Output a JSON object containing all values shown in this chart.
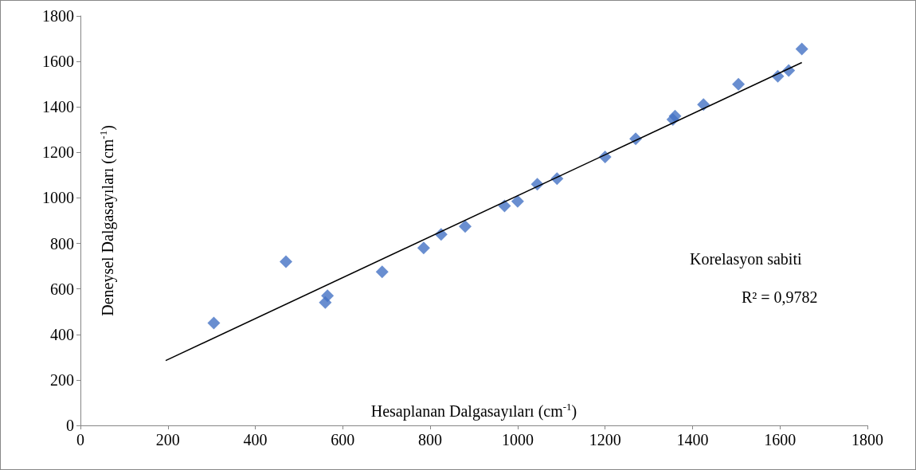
{
  "chart_data": {
    "type": "scatter",
    "xlabel": "Hesaplanan Dalgasayıları (cm$^{-1}$)",
    "ylabel": "Deneysel Dalgasayıları (cm$^{-1}$)",
    "xlim": [
      0,
      1800
    ],
    "xticks": [
      0,
      200,
      400,
      600,
      800,
      1000,
      1200,
      1400,
      1600,
      1800
    ],
    "ylim": [
      0,
      1800
    ],
    "yticks": [
      0,
      200,
      400,
      600,
      800,
      1000,
      1200,
      1400,
      1600,
      1800
    ],
    "grid": false,
    "marker": "diamond",
    "annotations": [
      "Korelasyon sabiti",
      "R² = 0,9782"
    ],
    "series": [
      {
        "color": "#4472c4",
        "x": [
          305,
          470,
          560,
          565,
          690,
          785,
          825,
          880,
          970,
          1000,
          1045,
          1090,
          1200,
          1270,
          1355,
          1360,
          1425,
          1505,
          1595,
          1620,
          1650
        ],
        "values": [
          450,
          720,
          540,
          570,
          675,
          780,
          840,
          875,
          965,
          985,
          1060,
          1085,
          1180,
          1260,
          1345,
          1360,
          1410,
          1500,
          1535,
          1560,
          1655
        ]
      },
      {
        "type": "line",
        "color": "#000000",
        "marker": "none",
        "x": [
          195,
          1650
        ],
        "values": [
          285,
          1595
        ]
      }
    ]
  }
}
